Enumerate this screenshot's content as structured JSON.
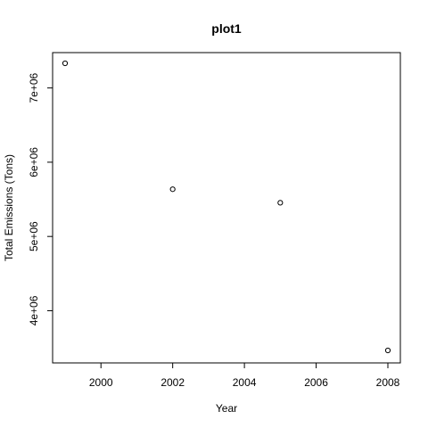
{
  "chart_data": {
    "type": "scatter",
    "title": "plot1",
    "xlabel": "Year",
    "ylabel": "Total Emissions (Tons)",
    "x": [
      1999,
      2002,
      2005,
      2008
    ],
    "y": [
      7332000,
      5636000,
      5454000,
      3465000
    ],
    "xlim": [
      1999,
      2008
    ],
    "ylim": [
      3465000,
      7332000
    ],
    "xticks": [
      2000,
      2002,
      2004,
      2006,
      2008
    ],
    "xtick_labels": [
      "2000",
      "2002",
      "2004",
      "2006",
      "2008"
    ],
    "yticks": [
      4000000,
      5000000,
      6000000,
      7000000
    ],
    "ytick_labels": [
      "4e+06",
      "5e+06",
      "6e+06",
      "7e+06"
    ],
    "marker": "open-circle",
    "grid": false,
    "box": true
  }
}
